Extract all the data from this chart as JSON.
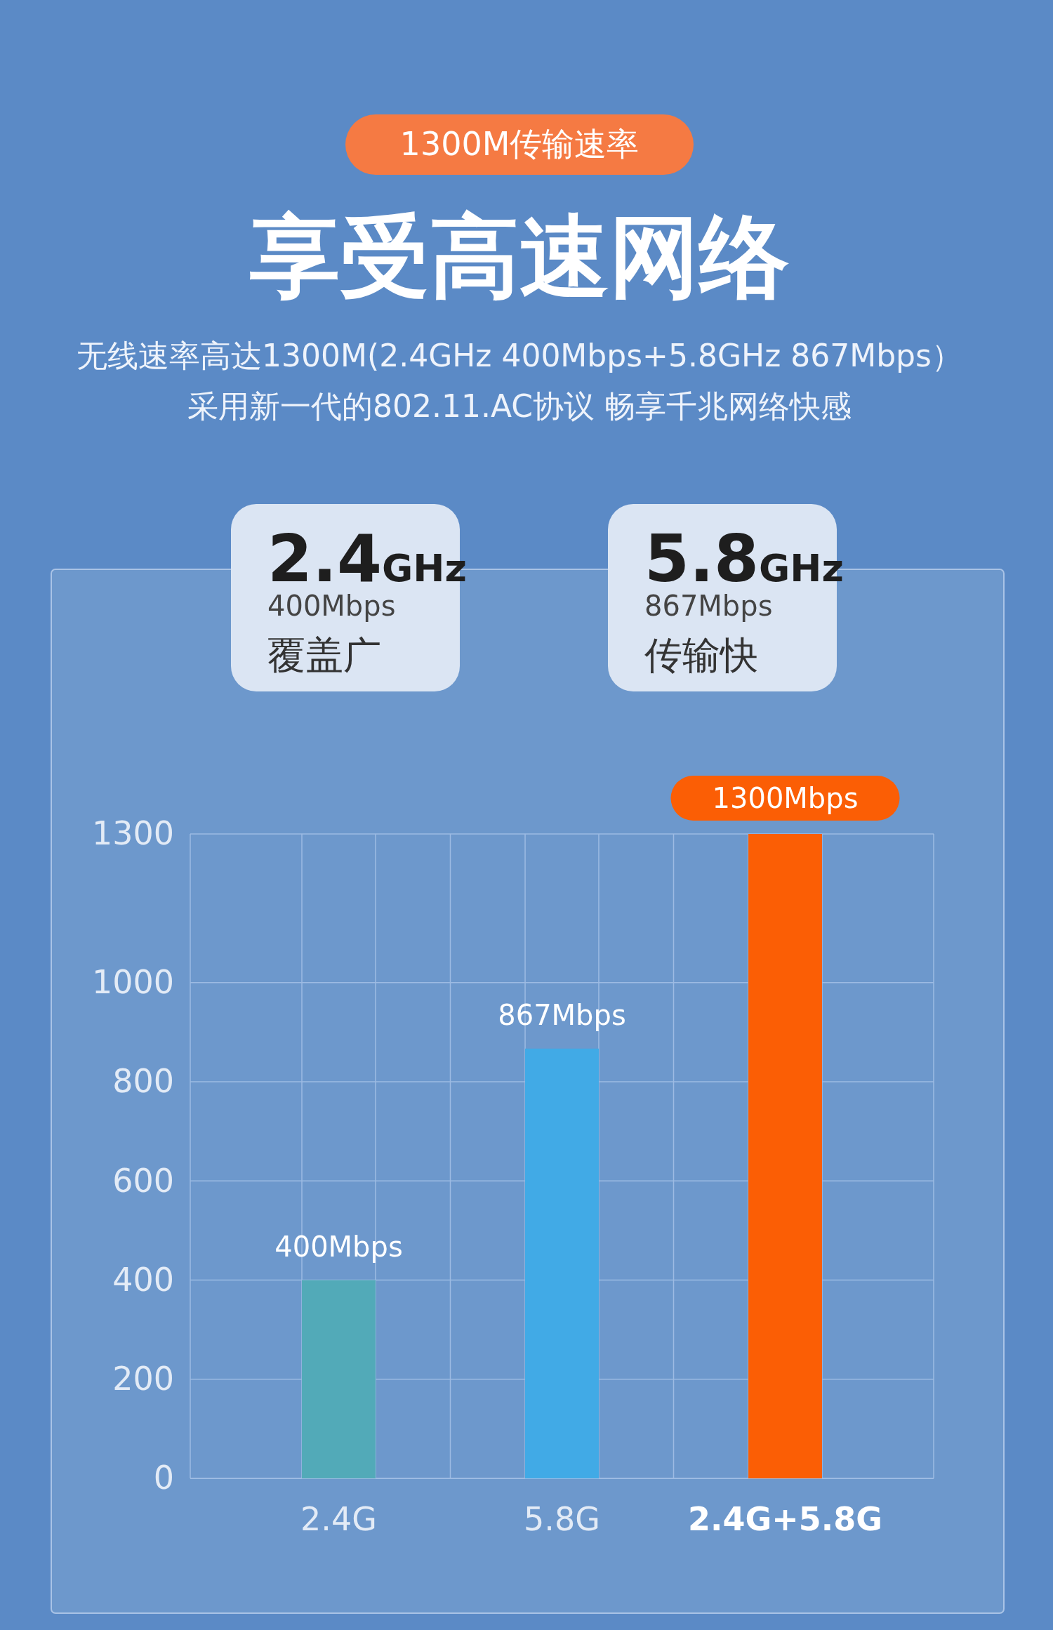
{
  "chart_data": {
    "type": "bar",
    "title": "享受高速网络",
    "subtitle": "无线速率高达1300M(2.4GHz 400Mbps+5.8GHz 867Mbps）",
    "annotations": [
      "1300M传输速率",
      "2.4GHz",
      "400Mbps",
      "覆盖广",
      "5.8GHz",
      "867Mbps",
      "传输快",
      "采用新一代的802.11.AC协议 畅享千兆网络快感"
    ],
    "categories": [
      "2.4G",
      "5.8G",
      "2.4G+5.8G"
    ],
    "values": [
      400,
      867,
      1300
    ],
    "colors": [
      "#52aab8",
      "#41aae6",
      "#fb5e05"
    ],
    "value_labels": [
      "400Mbps",
      "867Mbps",
      "1300Mbps"
    ],
    "ylim": [
      0,
      1300
    ],
    "yticks": [
      0,
      200,
      400,
      600,
      800,
      1000,
      1300
    ],
    "grid": true
  }
}
